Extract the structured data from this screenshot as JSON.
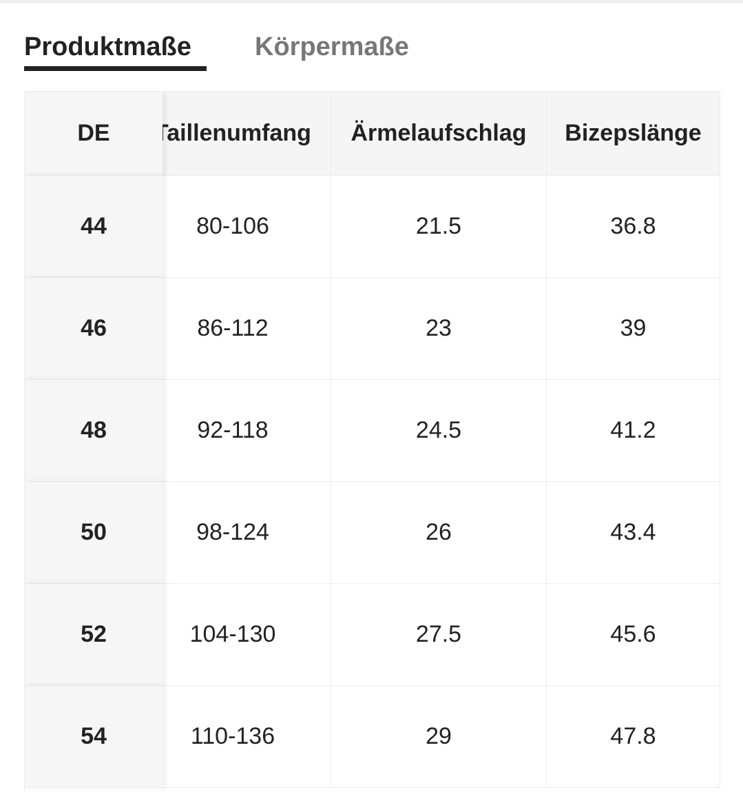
{
  "tabs": [
    "Produktmaße",
    "Körpermaße"
  ],
  "table": {
    "header": [
      "DE",
      "Taillenumfang",
      "Ärmelaufschlag",
      "Bizepslänge"
    ],
    "rows": [
      [
        "44",
        "80-106",
        "21.5",
        "36.8"
      ],
      [
        "46",
        "86-112",
        "23",
        "39"
      ],
      [
        "48",
        "92-118",
        "24.5",
        "41.2"
      ],
      [
        "50",
        "98-124",
        "26",
        "43.4"
      ],
      [
        "52",
        "104-130",
        "27.5",
        "45.6"
      ],
      [
        "54",
        "110-136",
        "29",
        "47.8"
      ]
    ]
  }
}
